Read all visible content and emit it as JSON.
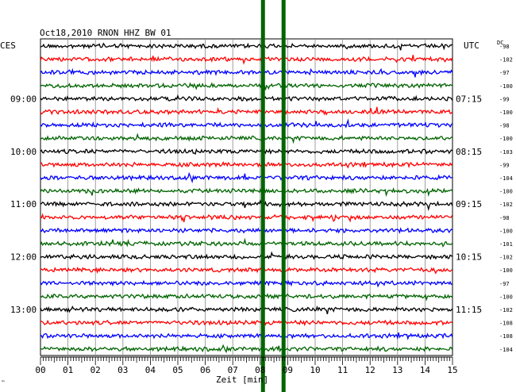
{
  "chart_data": {
    "type": "line",
    "title": "Oct18,2010   RNON HHZ BW 01",
    "left_axis_label": "CES",
    "right_axis_label": "UTC",
    "dc_label": "DC",
    "xlabel": "Zeit [min]",
    "x_range": [
      0,
      15
    ],
    "x_ticks": [
      "00",
      "01",
      "02",
      "03",
      "04",
      "05",
      "06",
      "07",
      "08",
      "09",
      "10",
      "11",
      "12",
      "13",
      "14",
      "15"
    ],
    "grid": true,
    "colors": {
      "black": "#000000",
      "red": "#ff0000",
      "blue": "#0000ff",
      "green": "#006400",
      "marker": "#006400"
    },
    "color_cycle": [
      "black",
      "red",
      "blue",
      "green"
    ],
    "traces": [
      {
        "dc": "-98"
      },
      {
        "dc": "-102"
      },
      {
        "dc": "-97"
      },
      {
        "dc": "-100"
      },
      {
        "dc": "-99"
      },
      {
        "dc": "-100"
      },
      {
        "dc": "-98"
      },
      {
        "dc": "-100"
      },
      {
        "dc": "-103"
      },
      {
        "dc": "-99"
      },
      {
        "dc": "-104"
      },
      {
        "dc": "-100"
      },
      {
        "dc": "-102"
      },
      {
        "dc": "-98"
      },
      {
        "dc": "-100"
      },
      {
        "dc": "-101"
      },
      {
        "dc": "-102"
      },
      {
        "dc": "-100"
      },
      {
        "dc": "-97"
      },
      {
        "dc": "-100"
      },
      {
        "dc": "-102"
      },
      {
        "dc": "-108"
      },
      {
        "dc": "-108"
      },
      {
        "dc": "-104"
      }
    ],
    "hour_labels": [
      {
        "trace": 4,
        "ces": "09:00",
        "utc": "07:15"
      },
      {
        "trace": 8,
        "ces": "10:00",
        "utc": "08:15"
      },
      {
        "trace": 12,
        "ces": "11:00",
        "utc": "09:15"
      },
      {
        "trace": 16,
        "ces": "12:00",
        "utc": "10:15"
      },
      {
        "trace": 20,
        "ces": "13:00",
        "utc": "11:15"
      }
    ],
    "marker_lines": [
      8.1,
      8.85
    ],
    "corner_mark": "™"
  }
}
